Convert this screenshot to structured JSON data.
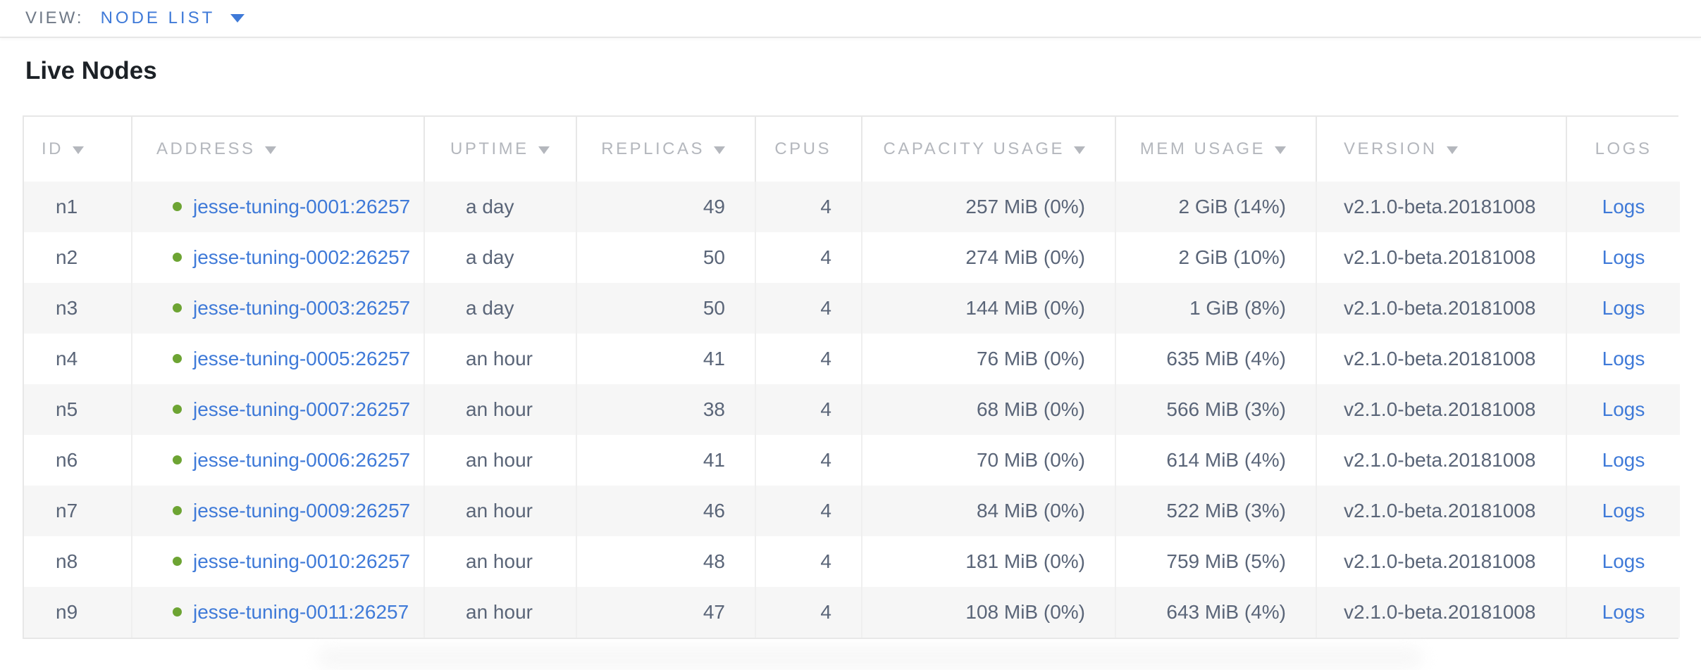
{
  "view_bar": {
    "label": "VIEW:",
    "selected_view": "NODE LIST"
  },
  "section_title": "Live Nodes",
  "table": {
    "columns": [
      {
        "key": "id",
        "label": "ID",
        "sortable": true
      },
      {
        "key": "address",
        "label": "ADDRESS",
        "sortable": true
      },
      {
        "key": "uptime",
        "label": "UPTIME",
        "sortable": true
      },
      {
        "key": "replicas",
        "label": "REPLICAS",
        "sortable": true
      },
      {
        "key": "cpus",
        "label": "CPUS",
        "sortable": false
      },
      {
        "key": "capacity",
        "label": "CAPACITY USAGE",
        "sortable": true
      },
      {
        "key": "mem",
        "label": "MEM USAGE",
        "sortable": true
      },
      {
        "key": "version",
        "label": "VERSION",
        "sortable": true
      },
      {
        "key": "logs",
        "label": "LOGS",
        "sortable": false
      }
    ],
    "rows": [
      {
        "id": "n1",
        "address": "jesse-tuning-0001:26257",
        "uptime": "a day",
        "replicas": "49",
        "cpus": "4",
        "capacity": "257 MiB (0%)",
        "mem": "2 GiB (14%)",
        "version": "v2.1.0-beta.20181008",
        "logs": "Logs"
      },
      {
        "id": "n2",
        "address": "jesse-tuning-0002:26257",
        "uptime": "a day",
        "replicas": "50",
        "cpus": "4",
        "capacity": "274 MiB (0%)",
        "mem": "2 GiB (10%)",
        "version": "v2.1.0-beta.20181008",
        "logs": "Logs"
      },
      {
        "id": "n3",
        "address": "jesse-tuning-0003:26257",
        "uptime": "a day",
        "replicas": "50",
        "cpus": "4",
        "capacity": "144 MiB (0%)",
        "mem": "1 GiB (8%)",
        "version": "v2.1.0-beta.20181008",
        "logs": "Logs"
      },
      {
        "id": "n4",
        "address": "jesse-tuning-0005:26257",
        "uptime": "an hour",
        "replicas": "41",
        "cpus": "4",
        "capacity": "76 MiB (0%)",
        "mem": "635 MiB (4%)",
        "version": "v2.1.0-beta.20181008",
        "logs": "Logs"
      },
      {
        "id": "n5",
        "address": "jesse-tuning-0007:26257",
        "uptime": "an hour",
        "replicas": "38",
        "cpus": "4",
        "capacity": "68 MiB (0%)",
        "mem": "566 MiB (3%)",
        "version": "v2.1.0-beta.20181008",
        "logs": "Logs"
      },
      {
        "id": "n6",
        "address": "jesse-tuning-0006:26257",
        "uptime": "an hour",
        "replicas": "41",
        "cpus": "4",
        "capacity": "70 MiB (0%)",
        "mem": "614 MiB (4%)",
        "version": "v2.1.0-beta.20181008",
        "logs": "Logs"
      },
      {
        "id": "n7",
        "address": "jesse-tuning-0009:26257",
        "uptime": "an hour",
        "replicas": "46",
        "cpus": "4",
        "capacity": "84 MiB (0%)",
        "mem": "522 MiB (3%)",
        "version": "v2.1.0-beta.20181008",
        "logs": "Logs"
      },
      {
        "id": "n8",
        "address": "jesse-tuning-0010:26257",
        "uptime": "an hour",
        "replicas": "48",
        "cpus": "4",
        "capacity": "181 MiB (0%)",
        "mem": "759 MiB (5%)",
        "version": "v2.1.0-beta.20181008",
        "logs": "Logs"
      },
      {
        "id": "n9",
        "address": "jesse-tuning-0011:26257",
        "uptime": "an hour",
        "replicas": "47",
        "cpus": "4",
        "capacity": "108 MiB (0%)",
        "mem": "643 MiB (4%)",
        "version": "v2.1.0-beta.20181008",
        "logs": "Logs"
      }
    ]
  },
  "colors": {
    "accent_blue": "#3F7AD8",
    "healthy_green": "#6DA433",
    "header_gray": "#B4B7BD",
    "cell_text": "#5A6578",
    "title_text": "#1C2126",
    "view_label_gray": "#6F7987",
    "row_alt_bg": "#F6F6F6",
    "border_light": "#E7E7E7"
  }
}
